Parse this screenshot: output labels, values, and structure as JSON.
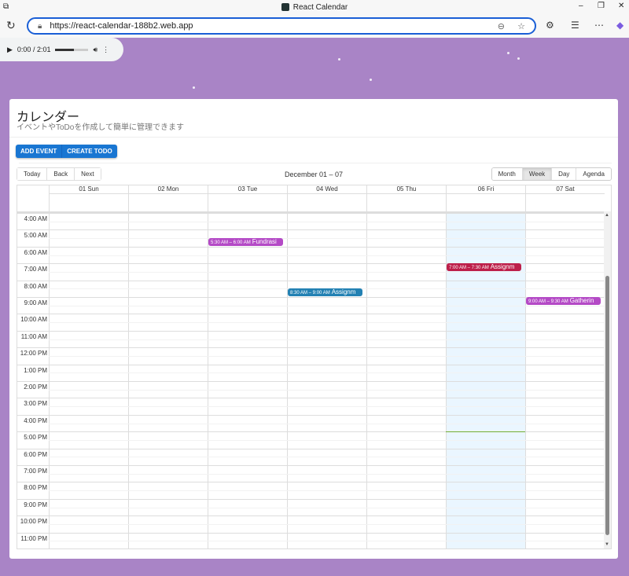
{
  "browser": {
    "title": "React Calendar",
    "url": "https://react-calendar-188b2.web.app"
  },
  "audio": {
    "time": "0:00 / 2:01",
    "progress": 0.55
  },
  "page": {
    "title": "カレンダー",
    "subtitle": "イベントやToDoを作成して簡単に管理できます"
  },
  "actions": {
    "add_event": "ADD EVENT",
    "create_todo": "CREATE TODO"
  },
  "toolbar": {
    "today": "Today",
    "back": "Back",
    "next": "Next",
    "range": "December 01 – 07",
    "views": [
      "Month",
      "Week",
      "Day",
      "Agenda"
    ],
    "active_view": "Week"
  },
  "days": [
    "01 Sun",
    "02 Mon",
    "03 Tue",
    "04 Wed",
    "05 Thu",
    "06 Fri",
    "07 Sat"
  ],
  "today_index": 5,
  "times": [
    "4:00 AM",
    "5:00 AM",
    "6:00 AM",
    "7:00 AM",
    "8:00 AM",
    "9:00 AM",
    "10:00 AM",
    "11:00 AM",
    "12:00 PM",
    "1:00 PM",
    "2:00 PM",
    "3:00 PM",
    "4:00 PM",
    "5:00 PM",
    "6:00 PM",
    "7:00 PM",
    "8:00 PM",
    "9:00 PM",
    "10:00 PM",
    "11:00 PM"
  ],
  "first_hour": 4,
  "current_time_hour": 17,
  "events": [
    {
      "day": 2,
      "start": 5.5,
      "time": "5:30 AM – 6:00 AM",
      "title": "Fundrasi",
      "color": "#b44ac6"
    },
    {
      "day": 5,
      "start": 7,
      "time": "7:00 AM – 7:30 AM",
      "title": "Assignm",
      "color": "#bd1f4a"
    },
    {
      "day": 3,
      "start": 8.5,
      "time": "8:30 AM – 9:00 AM",
      "title": "Assignm",
      "color": "#2381b3"
    },
    {
      "day": 6,
      "start": 9,
      "time": "9:00 AM – 9:30 AM",
      "title": "Gatherin",
      "color": "#b44ac6"
    }
  ]
}
